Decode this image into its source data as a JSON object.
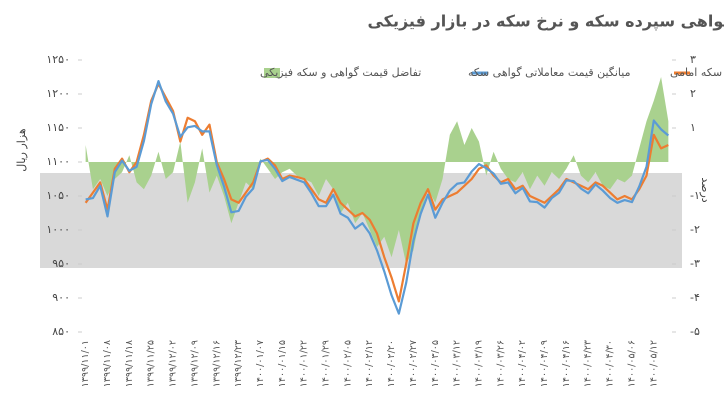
{
  "chart_data": {
    "type": "line",
    "title": "نوسان بهای گواهی سپرده سکه و نرخ سکه در بازار فیزیکی",
    "ylabel": "هزار ریال",
    "y2label": "درصد",
    "categories": [
      "۱۳۹۹/۱۱/۰۱",
      null,
      null,
      "۱۳۹۹/۱۱/۰۸",
      null,
      null,
      "۱۳۹۹/۱۱/۱۸",
      null,
      null,
      "۱۳۹۹/۱۱/۲۵",
      null,
      null,
      "۱۳۹۹/۱۲/۰۲",
      null,
      null,
      "۱۳۹۹/۱۲/۰۹",
      null,
      null,
      "۱۳۹۹/۱۲/۱۶",
      null,
      null,
      "۱۳۹۹/۱۲/۲۳",
      null,
      null,
      "۱۴۰۰/۰۱/۰۷",
      null,
      null,
      "۱۴۰۰/۰۱/۱۵",
      null,
      null,
      "۱۴۰۰/۰۱/۲۲",
      null,
      null,
      "۱۴۰۰/۰۱/۲۹",
      null,
      null,
      "۱۴۰۰/۰۲/۰۵",
      null,
      null,
      "۱۴۰۰/۰۲/۱۲",
      null,
      null,
      "۱۴۰۰/۰۲/۲۰",
      null,
      null,
      "۱۴۰۰/۰۲/۲۷",
      null,
      null,
      "۱۴۰۰/۰۳/۰۵",
      null,
      null,
      "۱۴۰۰/۰۳/۱۲",
      null,
      null,
      "۱۴۰۰/۰۳/۱۹",
      null,
      null,
      "۱۴۰۰/۰۳/۲۶",
      null,
      null,
      "۱۴۰۰/۰۴/۰۲",
      null,
      null,
      "۱۴۰۰/۰۴/۰۹",
      null,
      null,
      "۱۴۰۰/۰۴/۱۶",
      null,
      null,
      "۱۴۰۰/۰۴/۲۳",
      null,
      null,
      "۱۴۰۰/۰۴/۳۰",
      null,
      null,
      "۱۴۰۰/۰۵/۰۶",
      null,
      null,
      "۱۴۰۰/۰۵/۱۲",
      null,
      null
    ],
    "series": [
      {
        "name": "یک صدم قیمت معاملاتی سکه امامی",
        "color": "#ed7d31",
        "kind": "line",
        "values": [
          1040,
          1055,
          1070,
          1030,
          1090,
          1105,
          1085,
          1100,
          1140,
          1190,
          1215,
          1195,
          1175,
          1130,
          1165,
          1160,
          1140,
          1155,
          1100,
          1075,
          1045,
          1040,
          1055,
          1070,
          1100,
          1105,
          1095,
          1075,
          1080,
          1078,
          1075,
          1060,
          1045,
          1040,
          1060,
          1040,
          1030,
          1020,
          1025,
          1015,
          995,
          960,
          930,
          895,
          950,
          1010,
          1040,
          1060,
          1030,
          1045,
          1050,
          1055,
          1065,
          1075,
          1090,
          1095,
          1080,
          1070,
          1075,
          1060,
          1065,
          1050,
          1045,
          1040,
          1050,
          1060,
          1075,
          1070,
          1065,
          1060,
          1070,
          1065,
          1055,
          1045,
          1050,
          1045,
          1060,
          1080,
          1140,
          1120,
          1125
        ]
      },
      {
        "name": "میانگین قیمت معاملاتی گواهی سکه",
        "color": "#5b9bd5",
        "kind": "line",
        "values": [
          1045,
          1047,
          1065,
          1020,
          1085,
          1102,
          1087,
          1093,
          1131,
          1185,
          1219,
          1189,
          1171,
          1137,
          1151,
          1153,
          1145,
          1145,
          1096,
          1064,
          1026,
          1028,
          1049,
          1061,
          1101,
          1103,
          1090,
          1072,
          1078,
          1074,
          1070,
          1054,
          1035,
          1035,
          1052,
          1024,
          1018,
          1002,
          1010,
          995,
          970,
          939,
          904,
          877,
          922,
          984,
          1024,
          1052,
          1018,
          1040,
          1058,
          1068,
          1070,
          1086,
          1097,
          1091,
          1083,
          1068,
          1070,
          1054,
          1062,
          1042,
          1041,
          1033,
          1047,
          1055,
          1073,
          1072,
          1061,
          1054,
          1067,
          1058,
          1047,
          1040,
          1044,
          1041,
          1064,
          1093,
          1161,
          1148,
          1139
        ]
      },
      {
        "name": "تفاضل قیمت گواهی و سکه فیزیکی",
        "color": "#a9d18e",
        "kind": "area",
        "axis": "y2",
        "values": [
          0.5,
          -0.8,
          -0.5,
          -1.0,
          -0.5,
          -0.3,
          0.2,
          -0.6,
          -0.8,
          -0.4,
          0.3,
          -0.5,
          -0.3,
          0.6,
          -1.2,
          -0.6,
          0.4,
          -0.9,
          -0.4,
          -1.0,
          -1.8,
          -1.2,
          -0.6,
          -0.8,
          0.1,
          -0.2,
          -0.5,
          -0.3,
          -0.2,
          -0.4,
          -0.5,
          -0.6,
          -1.0,
          -0.5,
          -0.8,
          -1.5,
          -1.2,
          -1.8,
          -1.5,
          -2.0,
          -2.5,
          -2.2,
          -2.8,
          -2.0,
          -3.0,
          -2.6,
          -1.5,
          -0.8,
          -1.2,
          -0.5,
          0.8,
          1.2,
          0.5,
          1.0,
          0.6,
          -0.4,
          0.3,
          -0.2,
          -0.5,
          -0.6,
          -0.3,
          -0.8,
          -0.4,
          -0.7,
          -0.3,
          -0.5,
          -0.2,
          0.2,
          -0.4,
          -0.6,
          -0.3,
          -0.7,
          -0.8,
          -0.5,
          -0.6,
          -0.4,
          0.4,
          1.2,
          1.8,
          2.5,
          1.2
        ]
      }
    ],
    "ylim": [
      850,
      1250
    ],
    "yticks": [
      {
        "value": 850,
        "label": "۸۵۰"
      },
      {
        "value": 900,
        "label": "۹۰۰"
      },
      {
        "value": 950,
        "label": "۹۵۰"
      },
      {
        "value": 1000,
        "label": "۱۰۰۰"
      },
      {
        "value": 1050,
        "label": "۱۰۵۰"
      },
      {
        "value": 1100,
        "label": "۱۱۰۰"
      },
      {
        "value": 1150,
        "label": "۱۱۵۰"
      },
      {
        "value": 1200,
        "label": "۱۲۰۰"
      },
      {
        "value": 1250,
        "label": "۱۲۵۰"
      }
    ],
    "y2lim": [
      -5,
      3
    ],
    "y2ticks": [
      {
        "value": 3,
        "label": "۳"
      },
      {
        "value": 2,
        "label": "۲"
      },
      {
        "value": 1,
        "label": "۱"
      },
      {
        "value": -1,
        "label": "-۱"
      },
      {
        "value": -2,
        "label": "-۲"
      },
      {
        "value": -3,
        "label": "-۳"
      },
      {
        "value": -4,
        "label": "-۴"
      },
      {
        "value": -5,
        "label": "-۵"
      }
    ],
    "grid": false
  }
}
